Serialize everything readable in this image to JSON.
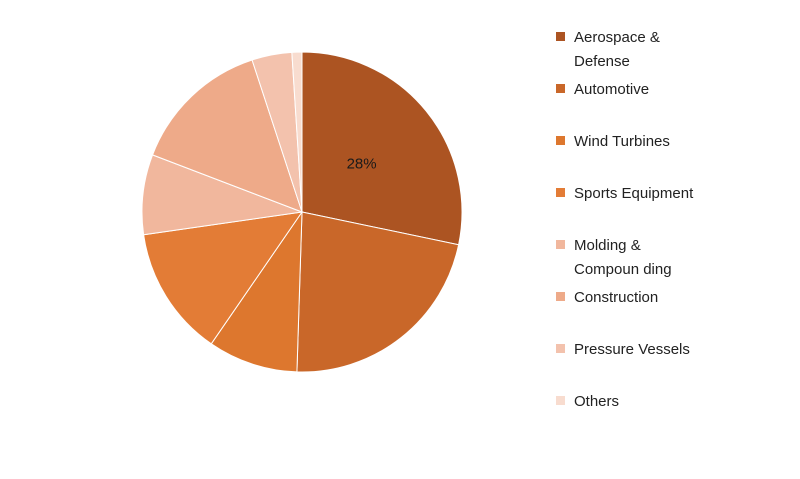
{
  "chart_data": {
    "type": "pie",
    "title": "",
    "series": [
      {
        "categories": [
          "Aerospace & Defense",
          "Automotive",
          "Wind Turbines",
          "Sports Equipment",
          "Molding & Compounding",
          "Construction",
          "Pressure Vessels",
          "Others"
        ],
        "values": [
          28,
          22,
          9,
          13,
          8,
          14,
          4,
          1
        ],
        "data_labels": [
          "28%",
          "",
          "",
          "",
          "",
          "",
          "",
          ""
        ],
        "colors": [
          "#ac5422",
          "#c96729",
          "#dd772e",
          "#e37c36",
          "#f1b79d",
          "#eeaa89",
          "#f3c2ad",
          "#f8dccf"
        ]
      }
    ],
    "legend": {
      "position": "right",
      "entries": [
        [
          "Aerospace &",
          "Defense"
        ],
        [
          "Automotive"
        ],
        [
          "Wind Turbines"
        ],
        [
          "Sports Equipment"
        ],
        [
          "Molding &",
          "Compoun ding"
        ],
        [
          "Construction"
        ],
        [
          "Pressure Vessels"
        ],
        [
          "Others"
        ]
      ]
    }
  }
}
